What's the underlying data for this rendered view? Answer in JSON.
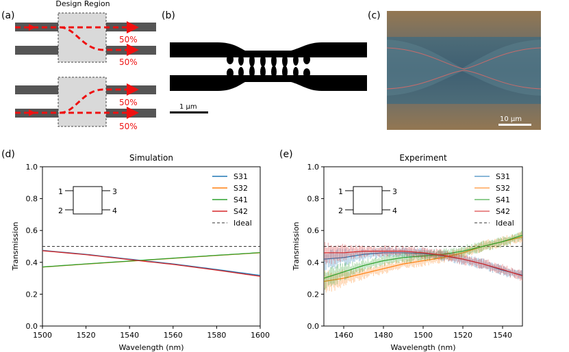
{
  "panel_labels": {
    "a": "(a)",
    "b": "(b)",
    "c": "(c)",
    "d": "(d)",
    "e": "(e)"
  },
  "panel_a": {
    "design_region_label": "Design Region",
    "top_split": {
      "through": "50%",
      "cross": "50%"
    },
    "bottom_split": {
      "cross": "50%",
      "through": "50%"
    }
  },
  "panel_b": {
    "scale_bar": "1 µm"
  },
  "panel_c": {
    "scale_bar": "10 µm"
  },
  "schematic": {
    "port1": "1",
    "port2": "2",
    "port3": "3",
    "port4": "4"
  },
  "colors": {
    "S31": "#1f77b4",
    "S32": "#ff7f0e",
    "S41": "#2ca02c",
    "S42": "#d62728",
    "Ideal": "#333333",
    "arrow": "#ee1111"
  },
  "chart_data": [
    {
      "type": "line",
      "title": "Simulation",
      "xlabel": "Wavelength (nm)",
      "ylabel": "Transmission",
      "xlim": [
        1500,
        1600
      ],
      "ylim": [
        0.0,
        1.0
      ],
      "xticks": [
        "1500",
        "1520",
        "1540",
        "1560",
        "1580",
        "1600"
      ],
      "yticks": [
        "0.0",
        "0.2",
        "0.4",
        "0.6",
        "0.8",
        "1.0"
      ],
      "legend": [
        "S31",
        "S32",
        "S41",
        "S42",
        "Ideal"
      ],
      "legend_position": "top-right",
      "series": [
        {
          "name": "S31",
          "x": [
            1500,
            1520,
            1540,
            1560,
            1580,
            1600
          ],
          "values": [
            0.475,
            0.45,
            0.42,
            0.39,
            0.355,
            0.318
          ]
        },
        {
          "name": "S32",
          "x": [
            1500,
            1520,
            1540,
            1560,
            1580,
            1600
          ],
          "values": [
            0.37,
            0.389,
            0.407,
            0.425,
            0.443,
            0.46
          ]
        },
        {
          "name": "S41",
          "x": [
            1500,
            1520,
            1540,
            1560,
            1580,
            1600
          ],
          "values": [
            0.371,
            0.39,
            0.408,
            0.426,
            0.444,
            0.461
          ]
        },
        {
          "name": "S42",
          "x": [
            1500,
            1520,
            1540,
            1560,
            1580,
            1600
          ],
          "values": [
            0.473,
            0.448,
            0.417,
            0.387,
            0.351,
            0.312
          ]
        }
      ],
      "ideal": 0.5
    },
    {
      "type": "line",
      "title": "Experiment",
      "xlabel": "Wavelength (nm)",
      "ylabel": "Transmission",
      "xlim": [
        1450,
        1550
      ],
      "ylim": [
        0.0,
        1.0
      ],
      "xticks": [
        "1460",
        "1480",
        "1500",
        "1520",
        "1540"
      ],
      "xtick_values": [
        1460,
        1480,
        1500,
        1520,
        1540
      ],
      "yticks": [
        "0.0",
        "0.2",
        "0.4",
        "0.6",
        "0.8",
        "1.0"
      ],
      "legend": [
        "S31",
        "S32",
        "S41",
        "S42",
        "Ideal"
      ],
      "legend_position": "top-right",
      "series": [
        {
          "name": "S31",
          "x": [
            1450,
            1460,
            1470,
            1480,
            1490,
            1500,
            1510,
            1520,
            1530,
            1540,
            1550
          ],
          "values": [
            0.42,
            0.43,
            0.45,
            0.46,
            0.46,
            0.455,
            0.44,
            0.42,
            0.39,
            0.35,
            0.32
          ]
        },
        {
          "name": "S32",
          "x": [
            1450,
            1460,
            1470,
            1480,
            1490,
            1500,
            1510,
            1520,
            1530,
            1540,
            1550
          ],
          "values": [
            0.28,
            0.3,
            0.33,
            0.36,
            0.39,
            0.41,
            0.43,
            0.46,
            0.5,
            0.53,
            0.56
          ]
        },
        {
          "name": "S41",
          "x": [
            1450,
            1460,
            1470,
            1480,
            1490,
            1500,
            1510,
            1520,
            1530,
            1540,
            1550
          ],
          "values": [
            0.3,
            0.34,
            0.38,
            0.41,
            0.43,
            0.44,
            0.45,
            0.47,
            0.5,
            0.53,
            0.57
          ]
        },
        {
          "name": "S42",
          "x": [
            1450,
            1460,
            1470,
            1480,
            1490,
            1500,
            1510,
            1520,
            1530,
            1540,
            1550
          ],
          "values": [
            0.46,
            0.46,
            0.47,
            0.47,
            0.47,
            0.46,
            0.445,
            0.42,
            0.39,
            0.355,
            0.315
          ]
        }
      ],
      "ideal": 0.5
    }
  ]
}
